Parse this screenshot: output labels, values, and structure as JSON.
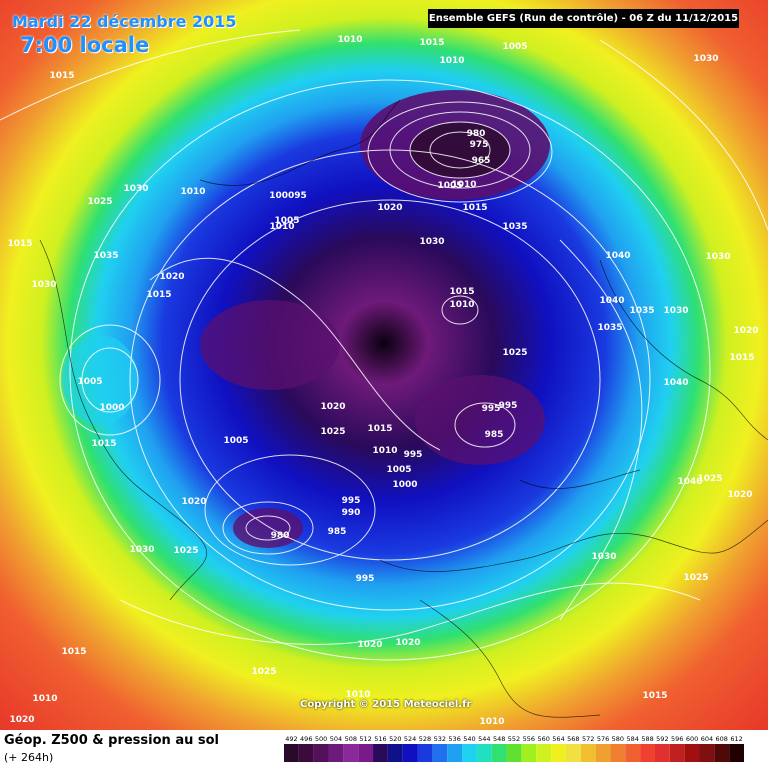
{
  "header": {
    "date": "Mardi 22 décembre 2015",
    "time": "7:00 locale",
    "run_info": "Ensemble GEFS  (Run de contrôle)  -  06 Z du 11/12/2015"
  },
  "map": {
    "copyright": "Copyright © 2015 Meteociel.fr",
    "isobar_labels": [
      {
        "text": "1010"
      },
      {
        "text": "1015"
      },
      {
        "text": "1005"
      },
      {
        "text": "1010"
      },
      {
        "text": "1015"
      },
      {
        "text": "980"
      },
      {
        "text": "975"
      },
      {
        "text": "965"
      },
      {
        "text": "1005"
      },
      {
        "text": "1010"
      },
      {
        "text": "1015"
      },
      {
        "text": "1035"
      },
      {
        "text": "100095"
      },
      {
        "text": "1005"
      },
      {
        "text": "1010"
      },
      {
        "text": "1030"
      },
      {
        "text": "1025"
      },
      {
        "text": "1010"
      },
      {
        "text": "1020"
      },
      {
        "text": "1030"
      },
      {
        "text": "1015"
      },
      {
        "text": "1035"
      },
      {
        "text": "1030"
      },
      {
        "text": "1020"
      },
      {
        "text": "1015"
      },
      {
        "text": "1030"
      },
      {
        "text": "1040"
      },
      {
        "text": "1030"
      },
      {
        "text": "1015"
      },
      {
        "text": "1010"
      },
      {
        "text": "1040"
      },
      {
        "text": "1035"
      },
      {
        "text": "1035"
      },
      {
        "text": "1030"
      },
      {
        "text": "1040"
      },
      {
        "text": "1020"
      },
      {
        "text": "1015"
      },
      {
        "text": "1025"
      },
      {
        "text": "1040"
      },
      {
        "text": "1005"
      },
      {
        "text": "1000"
      },
      {
        "text": "1015"
      },
      {
        "text": "1020"
      },
      {
        "text": "1025"
      },
      {
        "text": "1015"
      },
      {
        "text": "1005"
      },
      {
        "text": "995"
      },
      {
        "text": "995"
      },
      {
        "text": "985"
      },
      {
        "text": "1010"
      },
      {
        "text": "995"
      },
      {
        "text": "1005"
      },
      {
        "text": "1000"
      },
      {
        "text": "995"
      },
      {
        "text": "990"
      },
      {
        "text": "985"
      },
      {
        "text": "980"
      },
      {
        "text": "1020"
      },
      {
        "text": "1030"
      },
      {
        "text": "1025"
      },
      {
        "text": "995"
      },
      {
        "text": "1030"
      },
      {
        "text": "1025"
      },
      {
        "text": "1020"
      },
      {
        "text": "1025"
      },
      {
        "text": "1020"
      },
      {
        "text": "1020"
      },
      {
        "text": "1015"
      },
      {
        "text": "1025"
      },
      {
        "text": "1015"
      },
      {
        "text": "1010"
      },
      {
        "text": "1010"
      },
      {
        "text": "1020"
      },
      {
        "text": "1010"
      }
    ]
  },
  "footer": {
    "title": "Géop. Z500 & pression au sol",
    "subtitle": "(+ 264h)"
  },
  "scale": {
    "labels": [
      "492",
      "496",
      "500",
      "504",
      "508",
      "512",
      "516",
      "520",
      "524",
      "528",
      "532",
      "536",
      "540",
      "544",
      "548",
      "552",
      "556",
      "560",
      "564",
      "568",
      "572",
      "576",
      "580",
      "584",
      "588",
      "592",
      "596",
      "600",
      "604",
      "608",
      "612"
    ],
    "colors": [
      "#2a0a2a",
      "#3d0a3d",
      "#55105a",
      "#6e1a7a",
      "#8a2a9a",
      "#7a1a8a",
      "#2a0a5a",
      "#10108a",
      "#1010c0",
      "#1a3ae0",
      "#2070f0",
      "#20a0f0",
      "#20d0f0",
      "#20e0c0",
      "#30e070",
      "#60e030",
      "#a0f020",
      "#d0f020",
      "#f0f020",
      "#f0e040",
      "#f0c030",
      "#f0a030",
      "#f08030",
      "#f06030",
      "#f04030",
      "#e03030",
      "#c02020",
      "#a01010",
      "#801010",
      "#500808",
      "#200000"
    ]
  }
}
